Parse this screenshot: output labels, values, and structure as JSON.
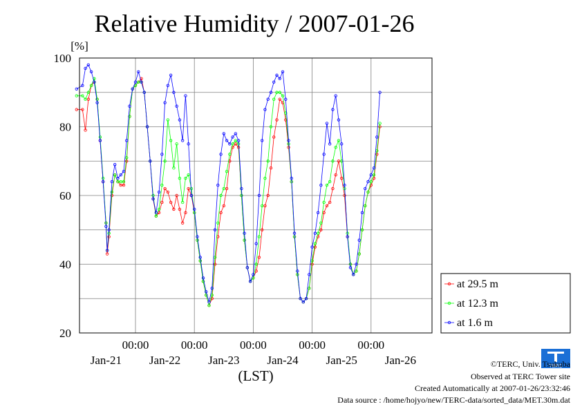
{
  "chart_data": {
    "type": "line",
    "title": "Relative Humidity / 2007-01-26",
    "ylabel": "[%]",
    "xlabel": "(LST)",
    "ylim": [
      20,
      100
    ],
    "yticks": [
      20,
      40,
      60,
      80,
      100
    ],
    "xlim": [
      0,
      6
    ],
    "time_labels": [
      "00:00",
      "00:00",
      "00:00",
      "00:00",
      "00:00"
    ],
    "date_labels": [
      "Jan-21",
      "Jan-22",
      "Jan-23",
      "Jan-24",
      "Jan-25",
      "Jan-26"
    ],
    "grid": true,
    "legend_position": "right",
    "series": [
      {
        "name": "at 29.5 m",
        "color": "#ff0000",
        "points": [
          [
            0.0,
            85
          ],
          [
            0.1,
            85
          ],
          [
            0.15,
            79
          ],
          [
            0.2,
            88
          ],
          [
            0.25,
            92
          ],
          [
            0.3,
            93
          ],
          [
            0.35,
            88
          ],
          [
            0.4,
            76
          ],
          [
            0.45,
            64
          ],
          [
            0.5,
            52
          ],
          [
            0.52,
            43
          ],
          [
            0.55,
            48
          ],
          [
            0.6,
            60
          ],
          [
            0.65,
            66
          ],
          [
            0.7,
            64
          ],
          [
            0.75,
            63
          ],
          [
            0.8,
            63
          ],
          [
            0.85,
            70
          ],
          [
            0.9,
            83
          ],
          [
            0.95,
            91
          ],
          [
            1.0,
            92
          ],
          [
            1.05,
            93
          ],
          [
            1.1,
            94
          ],
          [
            1.15,
            90
          ],
          [
            1.2,
            80
          ],
          [
            1.25,
            70
          ],
          [
            1.3,
            59
          ],
          [
            1.35,
            54
          ],
          [
            1.4,
            55
          ],
          [
            1.45,
            58
          ],
          [
            1.5,
            62
          ],
          [
            1.55,
            61
          ],
          [
            1.6,
            58
          ],
          [
            1.65,
            56
          ],
          [
            1.7,
            60
          ],
          [
            1.75,
            56
          ],
          [
            1.8,
            52
          ],
          [
            1.85,
            55
          ],
          [
            1.9,
            62
          ],
          [
            1.95,
            60
          ],
          [
            2.0,
            55
          ],
          [
            2.05,
            47
          ],
          [
            2.1,
            41
          ],
          [
            2.15,
            35
          ],
          [
            2.2,
            31
          ],
          [
            2.25,
            28
          ],
          [
            2.3,
            30
          ],
          [
            2.35,
            40
          ],
          [
            2.4,
            48
          ],
          [
            2.45,
            55
          ],
          [
            2.5,
            57
          ],
          [
            2.55,
            62
          ],
          [
            2.6,
            70
          ],
          [
            2.65,
            74
          ],
          [
            2.7,
            75
          ],
          [
            2.75,
            74
          ],
          [
            2.8,
            60
          ],
          [
            2.85,
            47
          ],
          [
            2.9,
            39
          ],
          [
            2.95,
            35
          ],
          [
            3.0,
            36
          ],
          [
            3.05,
            38
          ],
          [
            3.1,
            42
          ],
          [
            3.15,
            50
          ],
          [
            3.2,
            57
          ],
          [
            3.25,
            60
          ],
          [
            3.3,
            68
          ],
          [
            3.35,
            77
          ],
          [
            3.4,
            82
          ],
          [
            3.45,
            88
          ],
          [
            3.5,
            87
          ],
          [
            3.55,
            82
          ],
          [
            3.6,
            74
          ],
          [
            3.65,
            64
          ],
          [
            3.7,
            48
          ],
          [
            3.75,
            37
          ],
          [
            3.8,
            30
          ],
          [
            3.85,
            29
          ],
          [
            3.9,
            30
          ],
          [
            3.95,
            33
          ],
          [
            4.0,
            40
          ],
          [
            4.05,
            45
          ],
          [
            4.1,
            48
          ],
          [
            4.15,
            50
          ],
          [
            4.2,
            55
          ],
          [
            4.25,
            57
          ],
          [
            4.3,
            58
          ],
          [
            4.35,
            62
          ],
          [
            4.4,
            66
          ],
          [
            4.45,
            70
          ],
          [
            4.5,
            65
          ],
          [
            4.55,
            60
          ],
          [
            4.6,
            48
          ],
          [
            4.65,
            40
          ],
          [
            4.7,
            37
          ],
          [
            4.75,
            38
          ],
          [
            4.8,
            43
          ],
          [
            4.85,
            50
          ],
          [
            4.9,
            57
          ],
          [
            4.95,
            61
          ],
          [
            5.0,
            63
          ],
          [
            5.05,
            65
          ],
          [
            5.1,
            72
          ],
          [
            5.15,
            80
          ]
        ]
      },
      {
        "name": "at 12.3 m",
        "color": "#00ff00",
        "points": [
          [
            0.0,
            89
          ],
          [
            0.1,
            89
          ],
          [
            0.15,
            88
          ],
          [
            0.2,
            90
          ],
          [
            0.25,
            92
          ],
          [
            0.3,
            94
          ],
          [
            0.35,
            88
          ],
          [
            0.4,
            77
          ],
          [
            0.45,
            65
          ],
          [
            0.5,
            52
          ],
          [
            0.52,
            44
          ],
          [
            0.55,
            49
          ],
          [
            0.6,
            61
          ],
          [
            0.65,
            66
          ],
          [
            0.7,
            64
          ],
          [
            0.75,
            64
          ],
          [
            0.8,
            64
          ],
          [
            0.85,
            71
          ],
          [
            0.9,
            83
          ],
          [
            0.95,
            91
          ],
          [
            1.0,
            92
          ],
          [
            1.05,
            93
          ],
          [
            1.1,
            93
          ],
          [
            1.15,
            90
          ],
          [
            1.2,
            80
          ],
          [
            1.25,
            70
          ],
          [
            1.3,
            60
          ],
          [
            1.35,
            54
          ],
          [
            1.4,
            56
          ],
          [
            1.45,
            63
          ],
          [
            1.5,
            70
          ],
          [
            1.55,
            82
          ],
          [
            1.6,
            76
          ],
          [
            1.65,
            68
          ],
          [
            1.7,
            75
          ],
          [
            1.75,
            65
          ],
          [
            1.8,
            58
          ],
          [
            1.85,
            65
          ],
          [
            1.9,
            66
          ],
          [
            1.95,
            62
          ],
          [
            2.0,
            55
          ],
          [
            2.05,
            47
          ],
          [
            2.1,
            41
          ],
          [
            2.15,
            35
          ],
          [
            2.2,
            31
          ],
          [
            2.25,
            28
          ],
          [
            2.3,
            31
          ],
          [
            2.35,
            42
          ],
          [
            2.4,
            52
          ],
          [
            2.45,
            60
          ],
          [
            2.5,
            62
          ],
          [
            2.55,
            67
          ],
          [
            2.6,
            72
          ],
          [
            2.65,
            75
          ],
          [
            2.7,
            76
          ],
          [
            2.75,
            75
          ],
          [
            2.8,
            60
          ],
          [
            2.85,
            47
          ],
          [
            2.9,
            39
          ],
          [
            2.95,
            35
          ],
          [
            3.0,
            36
          ],
          [
            3.05,
            40
          ],
          [
            3.1,
            48
          ],
          [
            3.15,
            57
          ],
          [
            3.2,
            65
          ],
          [
            3.25,
            70
          ],
          [
            3.3,
            80
          ],
          [
            3.35,
            88
          ],
          [
            3.4,
            90
          ],
          [
            3.45,
            90
          ],
          [
            3.5,
            89
          ],
          [
            3.55,
            84
          ],
          [
            3.6,
            75
          ],
          [
            3.65,
            64
          ],
          [
            3.7,
            48
          ],
          [
            3.75,
            37
          ],
          [
            3.8,
            30
          ],
          [
            3.85,
            29
          ],
          [
            3.9,
            30
          ],
          [
            3.95,
            33
          ],
          [
            4.0,
            41
          ],
          [
            4.05,
            46
          ],
          [
            4.1,
            49
          ],
          [
            4.15,
            52
          ],
          [
            4.2,
            58
          ],
          [
            4.25,
            63
          ],
          [
            4.3,
            64
          ],
          [
            4.35,
            70
          ],
          [
            4.4,
            74
          ],
          [
            4.45,
            76
          ],
          [
            4.5,
            70
          ],
          [
            4.55,
            62
          ],
          [
            4.6,
            49
          ],
          [
            4.65,
            40
          ],
          [
            4.7,
            37
          ],
          [
            4.75,
            38
          ],
          [
            4.8,
            43
          ],
          [
            4.85,
            50
          ],
          [
            4.9,
            57
          ],
          [
            4.95,
            61
          ],
          [
            5.0,
            64
          ],
          [
            5.05,
            66
          ],
          [
            5.1,
            73
          ],
          [
            5.15,
            81
          ]
        ]
      },
      {
        "name": "at 1.6 m",
        "color": "#0000ff",
        "points": [
          [
            0.0,
            91
          ],
          [
            0.1,
            92
          ],
          [
            0.15,
            97
          ],
          [
            0.2,
            98
          ],
          [
            0.25,
            96
          ],
          [
            0.3,
            93
          ],
          [
            0.35,
            87
          ],
          [
            0.4,
            76
          ],
          [
            0.45,
            64
          ],
          [
            0.5,
            51
          ],
          [
            0.52,
            44
          ],
          [
            0.55,
            50
          ],
          [
            0.6,
            64
          ],
          [
            0.65,
            69
          ],
          [
            0.7,
            65
          ],
          [
            0.75,
            66
          ],
          [
            0.8,
            67
          ],
          [
            0.85,
            76
          ],
          [
            0.9,
            86
          ],
          [
            0.95,
            91
          ],
          [
            1.0,
            93
          ],
          [
            1.05,
            96
          ],
          [
            1.1,
            93
          ],
          [
            1.15,
            90
          ],
          [
            1.2,
            80
          ],
          [
            1.25,
            70
          ],
          [
            1.3,
            59
          ],
          [
            1.35,
            55
          ],
          [
            1.4,
            61
          ],
          [
            1.45,
            72
          ],
          [
            1.5,
            87
          ],
          [
            1.55,
            92
          ],
          [
            1.6,
            95
          ],
          [
            1.65,
            90
          ],
          [
            1.7,
            86
          ],
          [
            1.75,
            82
          ],
          [
            1.8,
            76
          ],
          [
            1.85,
            89
          ],
          [
            1.9,
            75
          ],
          [
            1.95,
            60
          ],
          [
            2.0,
            56
          ],
          [
            2.05,
            48
          ],
          [
            2.1,
            42
          ],
          [
            2.15,
            36
          ],
          [
            2.2,
            32
          ],
          [
            2.25,
            29
          ],
          [
            2.3,
            33
          ],
          [
            2.35,
            50
          ],
          [
            2.4,
            63
          ],
          [
            2.45,
            72
          ],
          [
            2.5,
            78
          ],
          [
            2.55,
            76
          ],
          [
            2.6,
            75
          ],
          [
            2.65,
            77
          ],
          [
            2.7,
            78
          ],
          [
            2.75,
            76
          ],
          [
            2.8,
            62
          ],
          [
            2.85,
            49
          ],
          [
            2.9,
            39
          ],
          [
            2.95,
            35
          ],
          [
            3.0,
            37
          ],
          [
            3.05,
            46
          ],
          [
            3.1,
            60
          ],
          [
            3.15,
            76
          ],
          [
            3.2,
            85
          ],
          [
            3.25,
            88
          ],
          [
            3.3,
            90
          ],
          [
            3.35,
            93
          ],
          [
            3.4,
            95
          ],
          [
            3.45,
            94
          ],
          [
            3.5,
            96
          ],
          [
            3.55,
            88
          ],
          [
            3.6,
            76
          ],
          [
            3.65,
            65
          ],
          [
            3.7,
            49
          ],
          [
            3.75,
            38
          ],
          [
            3.8,
            30
          ],
          [
            3.85,
            29
          ],
          [
            3.9,
            30
          ],
          [
            3.95,
            37
          ],
          [
            4.0,
            45
          ],
          [
            4.05,
            49
          ],
          [
            4.1,
            55
          ],
          [
            4.15,
            63
          ],
          [
            4.2,
            72
          ],
          [
            4.25,
            81
          ],
          [
            4.3,
            75
          ],
          [
            4.35,
            85
          ],
          [
            4.4,
            89
          ],
          [
            4.45,
            82
          ],
          [
            4.5,
            75
          ],
          [
            4.55,
            63
          ],
          [
            4.6,
            48
          ],
          [
            4.65,
            39
          ],
          [
            4.7,
            37
          ],
          [
            4.75,
            40
          ],
          [
            4.8,
            47
          ],
          [
            4.85,
            55
          ],
          [
            4.9,
            62
          ],
          [
            4.95,
            64
          ],
          [
            5.0,
            66
          ],
          [
            5.05,
            68
          ],
          [
            5.1,
            77
          ],
          [
            5.15,
            90
          ]
        ]
      }
    ]
  },
  "credits": {
    "copyright": "©TERC, Univ. Tsukuba",
    "site": "Observed at TERC Tower site",
    "created": "Created Automatically at 2007-01-26/23:32:46",
    "source": "Data source : /home/hojyo/new/TERC-data/sorted_data/MET.30m.dat"
  },
  "logo": {
    "text": "TERC",
    "color": "#1a6fd6"
  }
}
